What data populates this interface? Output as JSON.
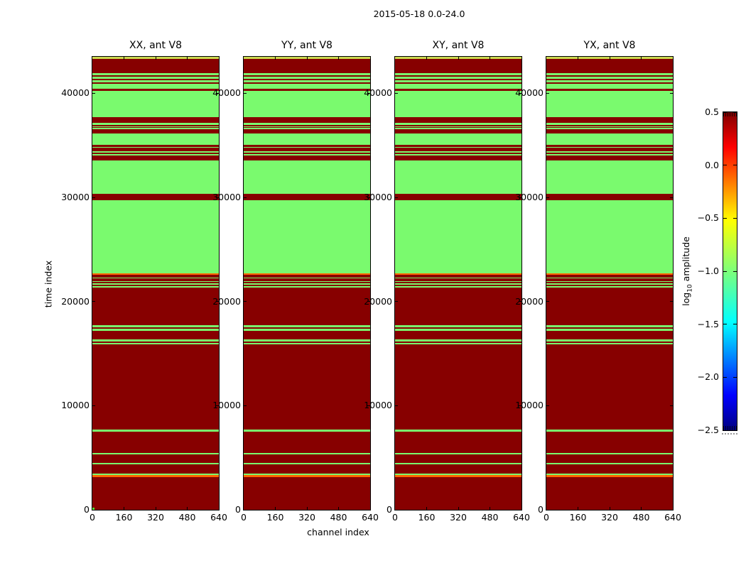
{
  "chart_data": {
    "type": "heatmap",
    "suptitle": "2015-05-18 0.0-24.0",
    "panels": [
      "XX, ant V8",
      "YY, ant V8",
      "XY, ant V8",
      "YX, ant V8"
    ],
    "xlabel": "channel index",
    "ylabel": "time index",
    "xlim": [
      0,
      640
    ],
    "ylim": [
      0,
      43500
    ],
    "x_ticks": [
      0,
      160,
      320,
      480,
      640
    ],
    "y_ticks": [
      0,
      10000,
      20000,
      30000,
      40000
    ],
    "grid": false,
    "colorbar": {
      "label_prefix": "log",
      "label_sub": "10",
      "label_rest": " amplitude",
      "ticks": [
        "0.5",
        "0.0",
        "−0.5",
        "−1.0",
        "−1.5",
        "−2.0",
        "−2.5"
      ],
      "vmax": 0.5,
      "vmin": -2.5,
      "colormap": "jet",
      "gradient_stops": [
        {
          "pos": 0,
          "color": "#7f0000"
        },
        {
          "pos": 11,
          "color": "#ff0000"
        },
        {
          "pos": 34,
          "color": "#ffff00"
        },
        {
          "pos": 50,
          "color": "#7dff7a"
        },
        {
          "pos": 66,
          "color": "#00ffff"
        },
        {
          "pos": 89,
          "color": "#0000ff"
        },
        {
          "pos": 100,
          "color": "#000080"
        }
      ]
    },
    "value_colors": {
      "hi": "#870000",
      "lo": "#7afa6e",
      "mid": "#fc6600",
      "ylw": "#ccd94e",
      "corner": "#55e034"
    },
    "approx_log10_amplitude": {
      "hi": 0.5,
      "lo": -1.0,
      "mid": -0.2,
      "ylw": -0.55
    },
    "bands_note": "horizontal bands spanning all channels, identical in all four panels; [time_start, time_end, level]",
    "bands": [
      [
        43500,
        43300,
        "ylw"
      ],
      [
        43300,
        41900,
        "hi"
      ],
      [
        41900,
        41730,
        "lo"
      ],
      [
        41730,
        41590,
        "hi"
      ],
      [
        41590,
        41390,
        "lo"
      ],
      [
        41390,
        41250,
        "hi"
      ],
      [
        41250,
        41050,
        "lo"
      ],
      [
        41050,
        40910,
        "hi"
      ],
      [
        40910,
        40430,
        "lo"
      ],
      [
        40430,
        40230,
        "hi"
      ],
      [
        40230,
        37700,
        "lo"
      ],
      [
        37700,
        37160,
        "hi"
      ],
      [
        37160,
        36950,
        "lo"
      ],
      [
        36950,
        36820,
        "hi"
      ],
      [
        36820,
        36750,
        "lo"
      ],
      [
        36750,
        36680,
        "hi"
      ],
      [
        36680,
        36540,
        "lo"
      ],
      [
        36540,
        36130,
        "hi"
      ],
      [
        36130,
        35040,
        "lo"
      ],
      [
        35040,
        34840,
        "hi"
      ],
      [
        34840,
        34740,
        "lo"
      ],
      [
        34740,
        34430,
        "hi"
      ],
      [
        34430,
        34290,
        "lo"
      ],
      [
        34290,
        34160,
        "hi"
      ],
      [
        34160,
        34020,
        "lo"
      ],
      [
        34020,
        33540,
        "hi"
      ],
      [
        33540,
        30340,
        "lo"
      ],
      [
        30340,
        29730,
        "hi"
      ],
      [
        29730,
        22700,
        "lo"
      ],
      [
        22700,
        22550,
        "mid"
      ],
      [
        22550,
        22300,
        "hi"
      ],
      [
        22300,
        22220,
        "lo"
      ],
      [
        22220,
        21950,
        "hi"
      ],
      [
        21950,
        21860,
        "lo"
      ],
      [
        21860,
        21730,
        "hi"
      ],
      [
        21730,
        21630,
        "lo"
      ],
      [
        21630,
        21450,
        "hi"
      ],
      [
        21450,
        21340,
        "lo"
      ],
      [
        21340,
        17730,
        "hi"
      ],
      [
        17730,
        17540,
        "lo"
      ],
      [
        17540,
        17370,
        "hi"
      ],
      [
        17370,
        17200,
        "lo"
      ],
      [
        17200,
        16340,
        "hi"
      ],
      [
        16340,
        16180,
        "lo"
      ],
      [
        16180,
        16020,
        "hi"
      ],
      [
        16020,
        15860,
        "lo"
      ],
      [
        15860,
        7700,
        "hi"
      ],
      [
        7700,
        7520,
        "lo"
      ],
      [
        7520,
        5450,
        "hi"
      ],
      [
        5450,
        5300,
        "lo"
      ],
      [
        5300,
        4520,
        "hi"
      ],
      [
        4520,
        4340,
        "lo"
      ],
      [
        4340,
        3500,
        "hi"
      ],
      [
        3500,
        3340,
        "lo"
      ],
      [
        3340,
        3120,
        "mid"
      ],
      [
        3120,
        0,
        "hi"
      ]
    ],
    "panel1_corner_marker": true
  }
}
